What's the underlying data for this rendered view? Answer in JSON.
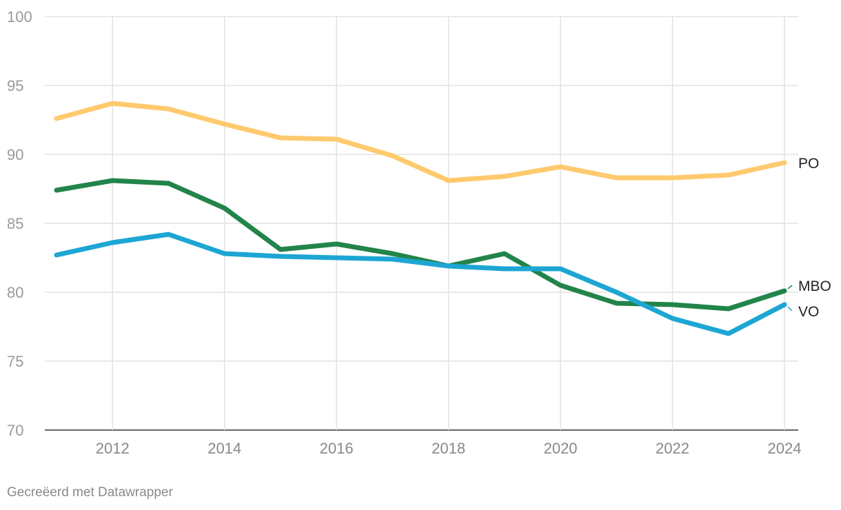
{
  "chart_data": {
    "type": "line",
    "title": "",
    "xlabel": "",
    "ylabel": "",
    "ylim": [
      70,
      100
    ],
    "xlim": [
      2011,
      2024
    ],
    "y_ticks": [
      70,
      75,
      80,
      85,
      90,
      95,
      100
    ],
    "x_ticks": [
      2012,
      2014,
      2016,
      2018,
      2020,
      2022,
      2024
    ],
    "grid": true,
    "x": [
      2011,
      2012,
      2013,
      2014,
      2015,
      2016,
      2017,
      2018,
      2019,
      2020,
      2021,
      2022,
      2023,
      2024
    ],
    "series": [
      {
        "name": "PO",
        "color": "#ffc96e",
        "values": [
          92.6,
          93.7,
          93.3,
          92.2,
          91.2,
          91.1,
          89.9,
          88.1,
          88.4,
          89.1,
          88.3,
          88.3,
          88.5,
          89.4
        ]
      },
      {
        "name": "MBO",
        "color": "#22844a",
        "values": [
          87.4,
          88.1,
          87.9,
          86.1,
          83.1,
          83.5,
          82.8,
          81.9,
          82.8,
          80.5,
          79.2,
          79.1,
          78.8,
          80.1
        ]
      },
      {
        "name": "VO",
        "color": "#1da6d3",
        "values": [
          82.7,
          83.6,
          84.2,
          82.8,
          82.6,
          82.5,
          82.4,
          81.9,
          81.7,
          81.7,
          80.0,
          78.1,
          77.0,
          79.1
        ]
      }
    ]
  },
  "credit": "Gecreëerd met Datawrapper"
}
